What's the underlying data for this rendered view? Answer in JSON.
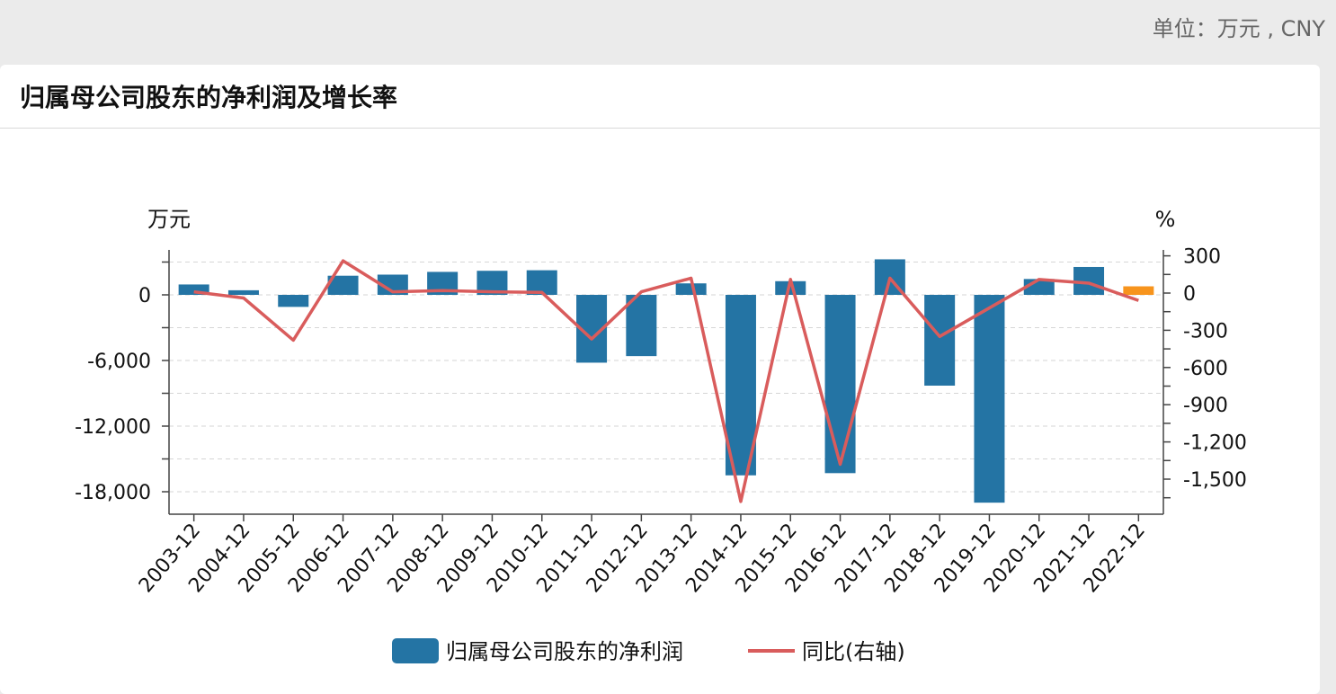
{
  "page": {
    "unit": "单位：万元 , CNY",
    "title": "归属母公司股东的净利润及增长率"
  },
  "chart_data": {
    "type": "bar",
    "categories": [
      "2003-12",
      "2004-12",
      "2005-12",
      "2006-12",
      "2007-12",
      "2008-12",
      "2009-12",
      "2010-12",
      "2011-12",
      "2012-12",
      "2013-12",
      "2014-12",
      "2015-12",
      "2016-12",
      "2017-12",
      "2018-12",
      "2019-12",
      "2020-12",
      "2021-12",
      "2022-12"
    ],
    "series": [
      {
        "name": "归属母公司股东的净利润",
        "kind": "bar",
        "axis": "left",
        "color": "#2474a4",
        "highlight_color": "#f7941d",
        "highlight_index": 19,
        "values": [
          950,
          420,
          -1100,
          1750,
          1850,
          2100,
          2200,
          2250,
          -6200,
          -5600,
          1050,
          -16500,
          1250,
          -16300,
          3250,
          -8300,
          -19000,
          1450,
          2550,
          780
        ]
      },
      {
        "name": "同比(右轴)",
        "kind": "line",
        "axis": "right",
        "color": "#d95c5c",
        "values": [
          10,
          -40,
          -380,
          260,
          10,
          20,
          10,
          5,
          -370,
          10,
          120,
          -1680,
          110,
          -1380,
          120,
          -350,
          -120,
          110,
          80,
          -60
        ]
      }
    ],
    "y_left": {
      "unit": "万元",
      "ticks": [
        "0",
        "-6,000",
        "-12,000",
        "-18,000"
      ],
      "tick_values": [
        0,
        -6000,
        -12000,
        -18000
      ],
      "range": [
        -20000,
        3500
      ]
    },
    "y_right": {
      "unit": "%",
      "ticks": [
        "300",
        "0",
        "-300",
        "-600",
        "-900",
        "-1,200",
        "-1,500"
      ],
      "tick_values": [
        300,
        0,
        -300,
        -600,
        -900,
        -1200,
        -1500
      ],
      "range": [
        -1800,
        300
      ]
    },
    "grid": true,
    "legend": "bottom"
  }
}
